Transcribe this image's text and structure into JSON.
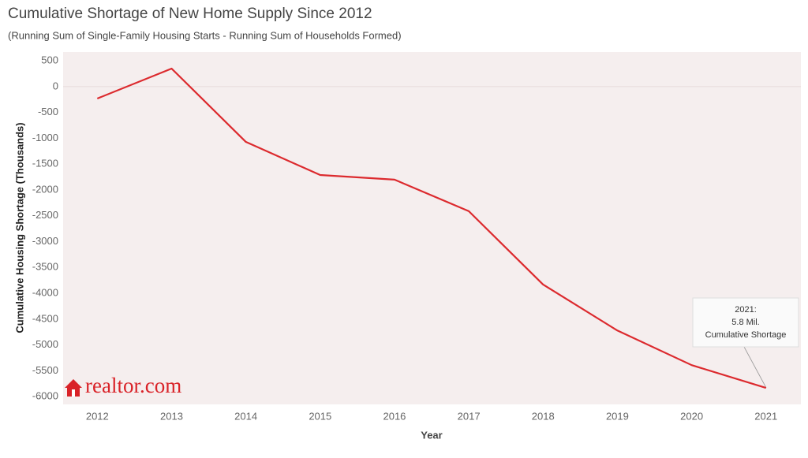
{
  "chart_data": {
    "type": "line",
    "title": "Cumulative Shortage of New Home Supply Since 2012",
    "subtitle": "(Running Sum of Single-Family Housing Starts - Running Sum of Households Formed)",
    "x_label": "Year",
    "y_label": "Cumulative Housing Shortage (Thousands)",
    "x": [
      2012,
      2013,
      2014,
      2015,
      2016,
      2017,
      2018,
      2019,
      2020,
      2021
    ],
    "series": [
      {
        "name": "Cumulative Shortage",
        "color": "#dc2a2e",
        "values": [
          -230,
          350,
          -1070,
          -1710,
          -1800,
          -2410,
          -3830,
          -4720,
          -5390,
          -5830
        ]
      }
    ],
    "xlim": [
      2011.54,
      2021.47
    ],
    "xticks": [
      2012,
      2013,
      2014,
      2015,
      2016,
      2017,
      2018,
      2019,
      2020,
      2021
    ],
    "ylim": [
      -6150,
      670
    ],
    "yticks": [
      500,
      0,
      -500,
      -1000,
      -1500,
      -2000,
      -2500,
      -3000,
      -3500,
      -4000,
      -4500,
      -5000,
      -5500,
      -6000
    ],
    "zero_line": true,
    "grid": false,
    "annotation": [
      "2021:",
      "5.8 Mil.",
      "Cumulative Shortage"
    ],
    "logo": "realtor.com"
  }
}
